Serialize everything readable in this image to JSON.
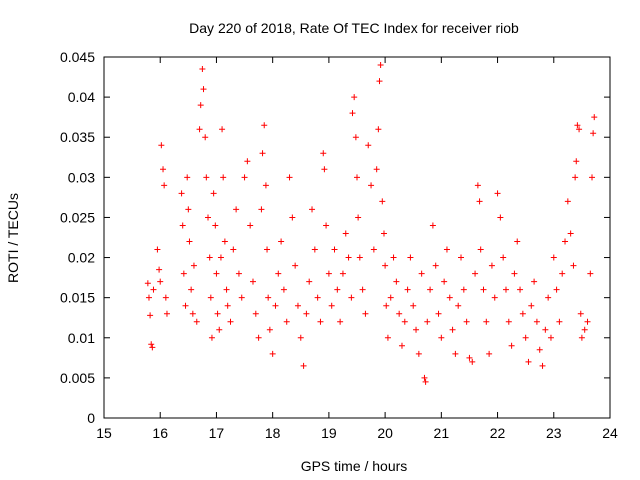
{
  "chart_data": {
    "type": "scatter",
    "title": "Day 220 of 2018, Rate Of TEC Index for receiver riob",
    "xlabel": "GPS time / hours",
    "ylabel": "ROTI / TECUs",
    "xlim": [
      15,
      24
    ],
    "ylim": [
      0,
      0.045
    ],
    "xticks": [
      15,
      16,
      17,
      18,
      19,
      20,
      21,
      22,
      23,
      24
    ],
    "xtick_labels": [
      "15",
      "16",
      "17",
      "18",
      "19",
      "20",
      "21",
      "22",
      "23",
      "24"
    ],
    "yticks": [
      0,
      0.005,
      0.01,
      0.015,
      0.02,
      0.025,
      0.03,
      0.035,
      0.04,
      0.045
    ],
    "ytick_labels": [
      "0",
      "0.005",
      "0.01",
      "0.015",
      "0.02",
      "0.025",
      "0.03",
      "0.035",
      "0.04",
      "0.045"
    ],
    "marker": "+",
    "color": "#ff0000",
    "grid": false,
    "series": [
      {
        "name": "ROTI",
        "points": [
          [
            15.78,
            0.0168
          ],
          [
            15.8,
            0.015
          ],
          [
            15.82,
            0.0128
          ],
          [
            15.84,
            0.0092
          ],
          [
            15.86,
            0.0088
          ],
          [
            15.88,
            0.016
          ],
          [
            15.95,
            0.021
          ],
          [
            15.98,
            0.0185
          ],
          [
            16.0,
            0.017
          ],
          [
            16.02,
            0.034
          ],
          [
            16.05,
            0.031
          ],
          [
            16.07,
            0.029
          ],
          [
            16.1,
            0.015
          ],
          [
            16.12,
            0.013
          ],
          [
            16.38,
            0.028
          ],
          [
            16.4,
            0.024
          ],
          [
            16.42,
            0.018
          ],
          [
            16.45,
            0.014
          ],
          [
            16.48,
            0.03
          ],
          [
            16.5,
            0.026
          ],
          [
            16.52,
            0.022
          ],
          [
            16.55,
            0.016
          ],
          [
            16.58,
            0.013
          ],
          [
            16.6,
            0.019
          ],
          [
            16.65,
            0.012
          ],
          [
            16.7,
            0.036
          ],
          [
            16.72,
            0.039
          ],
          [
            16.75,
            0.0435
          ],
          [
            16.77,
            0.041
          ],
          [
            16.8,
            0.035
          ],
          [
            16.82,
            0.03
          ],
          [
            16.85,
            0.025
          ],
          [
            16.88,
            0.02
          ],
          [
            16.9,
            0.015
          ],
          [
            16.92,
            0.01
          ],
          [
            16.95,
            0.028
          ],
          [
            16.98,
            0.024
          ],
          [
            17.0,
            0.018
          ],
          [
            17.02,
            0.013
          ],
          [
            17.05,
            0.011
          ],
          [
            17.08,
            0.02
          ],
          [
            17.1,
            0.036
          ],
          [
            17.12,
            0.03
          ],
          [
            17.15,
            0.022
          ],
          [
            17.18,
            0.016
          ],
          [
            17.2,
            0.014
          ],
          [
            17.25,
            0.012
          ],
          [
            17.3,
            0.021
          ],
          [
            17.35,
            0.026
          ],
          [
            17.4,
            0.018
          ],
          [
            17.45,
            0.015
          ],
          [
            17.5,
            0.03
          ],
          [
            17.55,
            0.032
          ],
          [
            17.6,
            0.024
          ],
          [
            17.65,
            0.017
          ],
          [
            17.7,
            0.013
          ],
          [
            17.75,
            0.01
          ],
          [
            17.8,
            0.026
          ],
          [
            17.82,
            0.033
          ],
          [
            17.85,
            0.0365
          ],
          [
            17.88,
            0.029
          ],
          [
            17.9,
            0.021
          ],
          [
            17.92,
            0.015
          ],
          [
            17.95,
            0.011
          ],
          [
            18.0,
            0.008
          ],
          [
            18.05,
            0.014
          ],
          [
            18.1,
            0.018
          ],
          [
            18.15,
            0.022
          ],
          [
            18.2,
            0.016
          ],
          [
            18.25,
            0.012
          ],
          [
            18.3,
            0.03
          ],
          [
            18.35,
            0.025
          ],
          [
            18.4,
            0.019
          ],
          [
            18.45,
            0.014
          ],
          [
            18.5,
            0.01
          ],
          [
            18.55,
            0.0065
          ],
          [
            18.6,
            0.013
          ],
          [
            18.65,
            0.017
          ],
          [
            18.7,
            0.026
          ],
          [
            18.75,
            0.021
          ],
          [
            18.8,
            0.015
          ],
          [
            18.85,
            0.012
          ],
          [
            18.9,
            0.033
          ],
          [
            18.92,
            0.031
          ],
          [
            18.95,
            0.024
          ],
          [
            19.0,
            0.018
          ],
          [
            19.05,
            0.014
          ],
          [
            19.1,
            0.021
          ],
          [
            19.15,
            0.016
          ],
          [
            19.2,
            0.012
          ],
          [
            19.25,
            0.018
          ],
          [
            19.3,
            0.023
          ],
          [
            19.35,
            0.02
          ],
          [
            19.4,
            0.015
          ],
          [
            19.42,
            0.038
          ],
          [
            19.45,
            0.04
          ],
          [
            19.48,
            0.035
          ],
          [
            19.5,
            0.03
          ],
          [
            19.52,
            0.025
          ],
          [
            19.55,
            0.02
          ],
          [
            19.6,
            0.016
          ],
          [
            19.65,
            0.013
          ],
          [
            19.7,
            0.034
          ],
          [
            19.75,
            0.029
          ],
          [
            19.8,
            0.021
          ],
          [
            19.85,
            0.031
          ],
          [
            19.88,
            0.036
          ],
          [
            19.9,
            0.042
          ],
          [
            19.92,
            0.044
          ],
          [
            19.95,
            0.027
          ],
          [
            19.98,
            0.023
          ],
          [
            20.0,
            0.019
          ],
          [
            20.02,
            0.014
          ],
          [
            20.05,
            0.01
          ],
          [
            20.1,
            0.015
          ],
          [
            20.15,
            0.02
          ],
          [
            20.2,
            0.017
          ],
          [
            20.25,
            0.013
          ],
          [
            20.3,
            0.009
          ],
          [
            20.35,
            0.012
          ],
          [
            20.4,
            0.016
          ],
          [
            20.45,
            0.02
          ],
          [
            20.5,
            0.014
          ],
          [
            20.55,
            0.011
          ],
          [
            20.6,
            0.008
          ],
          [
            20.65,
            0.018
          ],
          [
            20.7,
            0.005
          ],
          [
            20.72,
            0.0045
          ],
          [
            20.75,
            0.012
          ],
          [
            20.8,
            0.016
          ],
          [
            20.85,
            0.024
          ],
          [
            20.9,
            0.019
          ],
          [
            20.95,
            0.013
          ],
          [
            21.0,
            0.01
          ],
          [
            21.05,
            0.017
          ],
          [
            21.1,
            0.021
          ],
          [
            21.15,
            0.015
          ],
          [
            21.2,
            0.011
          ],
          [
            21.25,
            0.008
          ],
          [
            21.3,
            0.014
          ],
          [
            21.35,
            0.02
          ],
          [
            21.4,
            0.016
          ],
          [
            21.45,
            0.012
          ],
          [
            21.5,
            0.0075
          ],
          [
            21.55,
            0.007
          ],
          [
            21.6,
            0.018
          ],
          [
            21.65,
            0.029
          ],
          [
            21.68,
            0.027
          ],
          [
            21.7,
            0.021
          ],
          [
            21.75,
            0.016
          ],
          [
            21.8,
            0.012
          ],
          [
            21.85,
            0.008
          ],
          [
            21.9,
            0.019
          ],
          [
            21.95,
            0.015
          ],
          [
            22.0,
            0.028
          ],
          [
            22.05,
            0.025
          ],
          [
            22.1,
            0.02
          ],
          [
            22.15,
            0.016
          ],
          [
            22.2,
            0.012
          ],
          [
            22.25,
            0.009
          ],
          [
            22.3,
            0.018
          ],
          [
            22.35,
            0.022
          ],
          [
            22.4,
            0.016
          ],
          [
            22.45,
            0.013
          ],
          [
            22.5,
            0.01
          ],
          [
            22.55,
            0.007
          ],
          [
            22.6,
            0.014
          ],
          [
            22.65,
            0.017
          ],
          [
            22.7,
            0.012
          ],
          [
            22.75,
            0.0085
          ],
          [
            22.8,
            0.0065
          ],
          [
            22.85,
            0.011
          ],
          [
            22.9,
            0.015
          ],
          [
            22.95,
            0.01
          ],
          [
            23.0,
            0.02
          ],
          [
            23.05,
            0.016
          ],
          [
            23.1,
            0.012
          ],
          [
            23.15,
            0.018
          ],
          [
            23.2,
            0.022
          ],
          [
            23.25,
            0.027
          ],
          [
            23.3,
            0.023
          ],
          [
            23.35,
            0.019
          ],
          [
            23.38,
            0.03
          ],
          [
            23.4,
            0.032
          ],
          [
            23.42,
            0.0365
          ],
          [
            23.45,
            0.036
          ],
          [
            23.48,
            0.013
          ],
          [
            23.5,
            0.01
          ],
          [
            23.55,
            0.011
          ],
          [
            23.6,
            0.012
          ],
          [
            23.65,
            0.018
          ],
          [
            23.68,
            0.03
          ],
          [
            23.7,
            0.0355
          ],
          [
            23.72,
            0.0375
          ]
        ]
      }
    ]
  }
}
